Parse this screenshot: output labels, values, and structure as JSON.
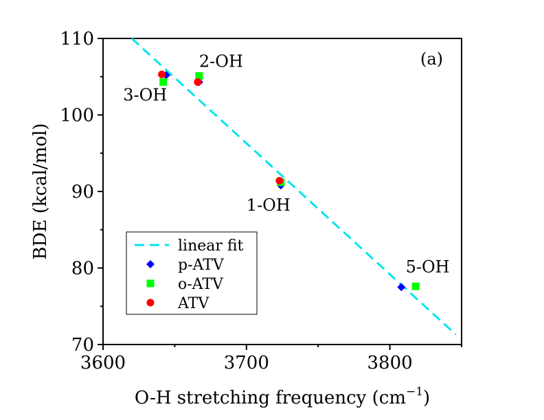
{
  "chart_data": {
    "type": "scatter",
    "panel_label": "(a)",
    "xlabel": "O-H stretching frequency (cm",
    "xlabel_sup": "−1",
    "xlabel_end": ")",
    "ylabel": "BDE (kcal/mol)",
    "xlim": [
      3600,
      3850
    ],
    "ylim": [
      70,
      110
    ],
    "x_ticks": [
      3600,
      3700,
      3800
    ],
    "y_ticks": [
      70,
      80,
      90,
      100,
      110
    ],
    "legend_position": "bottom-left",
    "series": [
      {
        "name": "linear fit",
        "kind": "line",
        "style": "dashed",
        "color": "#00e5ee",
        "points": [
          {
            "x": 3620,
            "y": 110
          },
          {
            "x": 3846,
            "y": 71.3
          }
        ]
      },
      {
        "name": "p-ATV",
        "kind": "scatter",
        "marker": "diamond",
        "color": "#0000ff",
        "points": [
          {
            "x": 3644,
            "y": 105.2
          },
          {
            "x": 3667,
            "y": 104.3
          },
          {
            "x": 3724,
            "y": 90.8
          },
          {
            "x": 3808,
            "y": 77.5
          }
        ]
      },
      {
        "name": "o-ATV",
        "kind": "scatter",
        "marker": "square",
        "color": "#00ff00",
        "points": [
          {
            "x": 3642,
            "y": 104.3
          },
          {
            "x": 3667,
            "y": 105.1
          },
          {
            "x": 3724,
            "y": 91.2
          },
          {
            "x": 3818,
            "y": 77.6
          }
        ]
      },
      {
        "name": "ATV",
        "kind": "scatter",
        "marker": "circle",
        "color": "#ff0000",
        "points": [
          {
            "x": 3641,
            "y": 105.3
          },
          {
            "x": 3666,
            "y": 104.3
          },
          {
            "x": 3723,
            "y": 91.4
          }
        ]
      }
    ],
    "annotations": [
      {
        "text": "2-OH",
        "x": 3667,
        "y": 106.3
      },
      {
        "text": "3-OH",
        "x": 3614,
        "y": 101.9
      },
      {
        "text": "1-OH",
        "x": 3700,
        "y": 87.5
      },
      {
        "text": "5-OH",
        "x": 3811,
        "y": 79.4
      }
    ]
  }
}
